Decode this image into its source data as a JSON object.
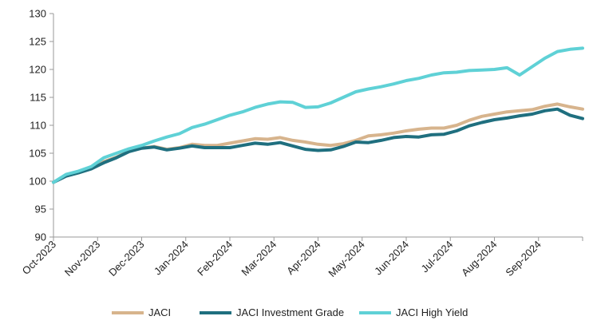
{
  "chart_data": {
    "type": "line",
    "title": "",
    "xlabel": "",
    "ylabel": "",
    "ylim": [
      90,
      130
    ],
    "yticks": [
      90,
      95,
      100,
      105,
      110,
      115,
      120,
      125,
      130
    ],
    "x_tick_labels": [
      "Oct-2023",
      "Nov-2023",
      "Dec-2023",
      "Jan-2024",
      "Feb-2024",
      "Mar-2024",
      "Apr-2024",
      "May-2024",
      "Jun-2024",
      "Jul-2024",
      "Aug-2024",
      "Sep-2024"
    ],
    "grid": false,
    "legend_position": "bottom",
    "x": [
      "Oct-2023",
      "Oct-2023",
      "Oct-2023",
      "Oct-2023",
      "Nov-2023",
      "Nov-2023",
      "Nov-2023",
      "Dec-2023",
      "Dec-2023",
      "Dec-2023",
      "Dec-2023",
      "Jan-2024",
      "Jan-2024",
      "Jan-2024",
      "Jan-2024",
      "Feb-2024",
      "Feb-2024",
      "Feb-2024",
      "Mar-2024",
      "Mar-2024",
      "Mar-2024",
      "Mar-2024",
      "Apr-2024",
      "Apr-2024",
      "Apr-2024",
      "May-2024",
      "May-2024",
      "May-2024",
      "May-2024",
      "Jun-2024",
      "Jun-2024",
      "Jun-2024",
      "Jul-2024",
      "Jul-2024",
      "Jul-2024",
      "Jul-2024",
      "Aug-2024",
      "Aug-2024",
      "Aug-2024",
      "Sep-2024",
      "Sep-2024",
      "Sep-2024",
      "Sep-2024"
    ],
    "series": [
      {
        "name": "JACI",
        "color": "#d7b48d",
        "values": [
          99.8,
          101.0,
          101.5,
          102.3,
          103.5,
          104.3,
          105.4,
          105.9,
          106.2,
          105.7,
          106.0,
          106.6,
          106.4,
          106.4,
          106.8,
          107.2,
          107.6,
          107.5,
          107.8,
          107.3,
          107.0,
          106.6,
          106.4,
          106.7,
          107.3,
          108.1,
          108.3,
          108.6,
          109.0,
          109.3,
          109.5,
          109.5,
          110.0,
          110.9,
          111.6,
          112.0,
          112.4,
          112.6,
          112.8,
          113.4,
          113.8,
          113.3,
          112.9
        ]
      },
      {
        "name": "JACI Investment Grade",
        "color": "#1f6f7f",
        "values": [
          99.8,
          100.9,
          101.5,
          102.2,
          103.3,
          104.2,
          105.3,
          105.9,
          106.1,
          105.6,
          105.9,
          106.3,
          106.0,
          106.0,
          106.0,
          106.4,
          106.8,
          106.6,
          106.9,
          106.3,
          105.7,
          105.5,
          105.6,
          106.2,
          107.0,
          106.9,
          107.3,
          107.8,
          108.0,
          107.9,
          108.3,
          108.4,
          109.0,
          109.9,
          110.5,
          111.0,
          111.3,
          111.7,
          112.0,
          112.6,
          112.9,
          111.8,
          111.2
        ]
      },
      {
        "name": "JACI High Yield",
        "color": "#5fd1d6",
        "values": [
          99.8,
          101.2,
          101.8,
          102.6,
          104.2,
          105.0,
          105.8,
          106.4,
          107.2,
          107.9,
          108.5,
          109.6,
          110.2,
          111.0,
          111.8,
          112.4,
          113.2,
          113.8,
          114.2,
          114.1,
          113.2,
          113.3,
          114.0,
          115.0,
          116.0,
          116.5,
          116.9,
          117.4,
          118.0,
          118.4,
          119.0,
          119.4,
          119.5,
          119.8,
          119.9,
          120.0,
          120.3,
          119.0,
          120.5,
          122.0,
          123.2,
          123.6,
          123.8
        ]
      }
    ]
  }
}
